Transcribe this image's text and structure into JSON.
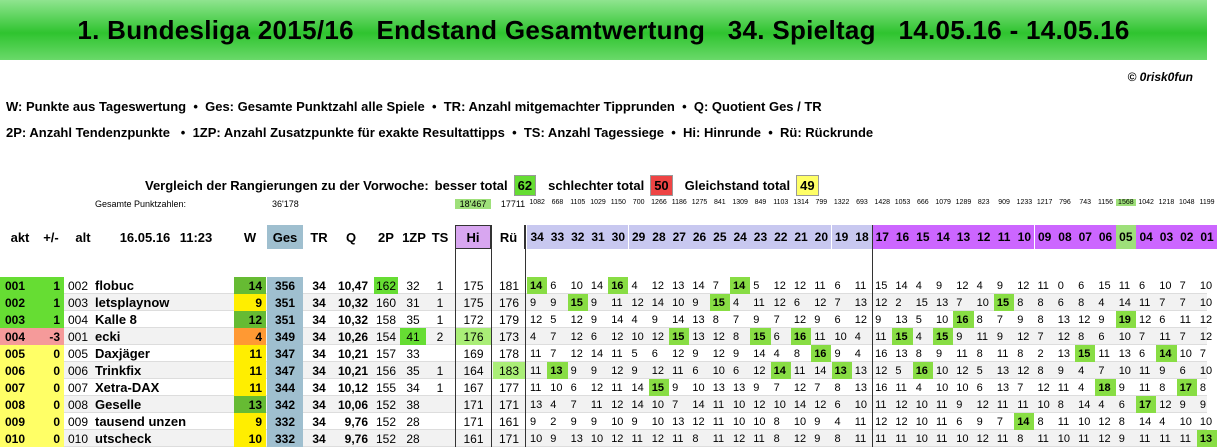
{
  "header": {
    "title": "1. Bundesliga 2015/16   Endstand Gesamtwertung   34. Spieltag   14.05.16 - 14.05.16",
    "copyright": "© 0risk0fun"
  },
  "legend": {
    "line1": "W: Punkte aus Tageswertung  •  Ges: Gesamte Punktzahl alle Spiele  •  TR: Anzahl mitgemachter Tipprunden  •  Q: Quotient Ges / TR",
    "line2": "2P: Anzahl Tendenzpunkte   •  1ZP: Anzahl Zusatzpunkte für exakte Resultattipps  •  TS: Anzahl Tagessiege  •  Hi: Hinrunde  •  Rü: Rückrunde"
  },
  "comparison": {
    "label": "Vergleich der Rangierungen zu der Vorwoche:",
    "better_label": "besser total",
    "better_value": "62",
    "worse_label": "schlechter total",
    "worse_value": "50",
    "equal_label": "Gleichstand total",
    "equal_value": "49"
  },
  "totals": {
    "label": "Gesamte Punktzahlen:",
    "ges_total": "36'178",
    "hi_total": "18'467",
    "rue_total": "17711",
    "round_totals": [
      "1082",
      "668",
      "1105",
      "1029",
      "1150",
      "700",
      "1266",
      "1186",
      "1275",
      "841",
      "1309",
      "849",
      "1103",
      "1314",
      "799",
      "1322",
      "693",
      "1428",
      "1053",
      "666",
      "1079",
      "1289",
      "823",
      "909",
      "1233",
      "1217",
      "796",
      "743",
      "1156",
      "1568",
      "1042",
      "1218",
      "1048",
      "1199"
    ]
  },
  "columns": {
    "akt": "akt",
    "pm": "+/-",
    "alt": "alt",
    "date": "16.05.16",
    "time": "11:23",
    "w": "W",
    "ges": "Ges",
    "tr": "TR",
    "q": "Q",
    "p2": "2P",
    "zp": "1ZP",
    "ts": "TS",
    "hi": "Hi",
    "rue": "Rü",
    "rounds": [
      "34",
      "33",
      "32",
      "31",
      "30",
      "29",
      "28",
      "27",
      "26",
      "25",
      "24",
      "23",
      "22",
      "21",
      "20",
      "19",
      "18",
      "17",
      "16",
      "15",
      "14",
      "13",
      "12",
      "11",
      "10",
      "09",
      "08",
      "07",
      "06",
      "05",
      "04",
      "03",
      "02",
      "01"
    ]
  },
  "colors": {
    "title_green": "#2fc42f",
    "ges_col": "#9fbfcf",
    "hi_col": "#d8a6f0",
    "second_half": "#cc66ff",
    "first_half_header": "#c8c8f0",
    "better": "#66dd33",
    "worse": "#ee4444",
    "equal": "#ffff66"
  },
  "rows": [
    {
      "akt": "001",
      "pm": "1",
      "alt": "002",
      "name": "flobuc",
      "w": "14",
      "ges": "356",
      "tr": "34",
      "q": "10,47",
      "p2": "162",
      "zp": "32",
      "ts": "1",
      "hi": "175",
      "rue": "181",
      "rounds": [
        "14",
        "6",
        "10",
        "14",
        "16",
        "4",
        "12",
        "13",
        "14",
        "7",
        "14",
        "5",
        "12",
        "12",
        "11",
        "6",
        "11",
        "15",
        "14",
        "4",
        "9",
        "12",
        "4",
        "9",
        "12",
        "11",
        "0",
        "6",
        "15",
        "11",
        "6",
        "10",
        "7",
        "10"
      ]
    },
    {
      "akt": "002",
      "pm": "1",
      "alt": "003",
      "name": "letsplaynow",
      "w": "9",
      "ges": "351",
      "tr": "34",
      "q": "10,32",
      "p2": "160",
      "zp": "31",
      "ts": "1",
      "hi": "175",
      "rue": "176",
      "rounds": [
        "9",
        "9",
        "15",
        "9",
        "11",
        "12",
        "14",
        "10",
        "9",
        "15",
        "4",
        "11",
        "12",
        "6",
        "12",
        "7",
        "13",
        "12",
        "2",
        "15",
        "13",
        "7",
        "10",
        "15",
        "8",
        "8",
        "6",
        "8",
        "4",
        "14",
        "11",
        "7",
        "7",
        "10"
      ]
    },
    {
      "akt": "003",
      "pm": "1",
      "alt": "004",
      "name": "Kalle 8",
      "w": "12",
      "ges": "351",
      "tr": "34",
      "q": "10,32",
      "p2": "158",
      "zp": "35",
      "ts": "1",
      "hi": "172",
      "rue": "179",
      "rounds": [
        "12",
        "5",
        "12",
        "9",
        "14",
        "4",
        "9",
        "14",
        "13",
        "8",
        "7",
        "9",
        "7",
        "12",
        "9",
        "6",
        "12",
        "9",
        "13",
        "5",
        "10",
        "16",
        "8",
        "7",
        "9",
        "8",
        "13",
        "12",
        "9",
        "19",
        "12",
        "6",
        "11",
        "12"
      ]
    },
    {
      "akt": "004",
      "pm": "-3",
      "alt": "001",
      "name": "ecki",
      "w": "4",
      "ges": "349",
      "tr": "34",
      "q": "10,26",
      "p2": "154",
      "zp": "41",
      "ts": "2",
      "hi": "176",
      "rue": "173",
      "rounds": [
        "4",
        "7",
        "12",
        "6",
        "12",
        "10",
        "12",
        "15",
        "13",
        "12",
        "8",
        "15",
        "6",
        "16",
        "11",
        "10",
        "4",
        "11",
        "15",
        "4",
        "15",
        "9",
        "11",
        "9",
        "12",
        "7",
        "12",
        "8",
        "6",
        "10",
        "7",
        "11",
        "7",
        "12"
      ]
    },
    {
      "akt": "005",
      "pm": "0",
      "alt": "005",
      "name": "Daxjäger",
      "w": "11",
      "ges": "347",
      "tr": "34",
      "q": "10,21",
      "p2": "157",
      "zp": "33",
      "ts": "",
      "hi": "169",
      "rue": "178",
      "rounds": [
        "11",
        "7",
        "12",
        "14",
        "11",
        "5",
        "6",
        "12",
        "9",
        "12",
        "9",
        "14",
        "4",
        "8",
        "16",
        "9",
        "4",
        "16",
        "13",
        "8",
        "9",
        "11",
        "8",
        "11",
        "8",
        "2",
        "13",
        "15",
        "11",
        "13",
        "6",
        "14",
        "10",
        "7"
      ]
    },
    {
      "akt": "006",
      "pm": "0",
      "alt": "006",
      "name": "Trinkfix",
      "w": "11",
      "ges": "347",
      "tr": "34",
      "q": "10,21",
      "p2": "156",
      "zp": "35",
      "ts": "1",
      "hi": "164",
      "rue": "183",
      "rounds": [
        "11",
        "13",
        "9",
        "9",
        "12",
        "9",
        "12",
        "11",
        "6",
        "10",
        "6",
        "12",
        "14",
        "11",
        "14",
        "13",
        "13",
        "12",
        "5",
        "16",
        "10",
        "12",
        "5",
        "13",
        "12",
        "8",
        "9",
        "4",
        "7",
        "10",
        "11",
        "9",
        "6",
        "10"
      ]
    },
    {
      "akt": "007",
      "pm": "0",
      "alt": "007",
      "name": "Xetra-DAX",
      "w": "11",
      "ges": "344",
      "tr": "34",
      "q": "10,12",
      "p2": "155",
      "zp": "34",
      "ts": "1",
      "hi": "167",
      "rue": "177",
      "rounds": [
        "11",
        "10",
        "6",
        "12",
        "11",
        "14",
        "15",
        "9",
        "10",
        "13",
        "13",
        "9",
        "7",
        "12",
        "7",
        "8",
        "13",
        "16",
        "11",
        "4",
        "10",
        "10",
        "6",
        "13",
        "7",
        "12",
        "11",
        "4",
        "18",
        "9",
        "11",
        "8",
        "17",
        "8"
      ]
    },
    {
      "akt": "008",
      "pm": "0",
      "alt": "008",
      "name": "Geselle",
      "w": "13",
      "ges": "342",
      "tr": "34",
      "q": "10,06",
      "p2": "152",
      "zp": "38",
      "ts": "",
      "hi": "171",
      "rue": "171",
      "rounds": [
        "13",
        "4",
        "7",
        "11",
        "12",
        "14",
        "10",
        "7",
        "14",
        "11",
        "10",
        "12",
        "10",
        "14",
        "12",
        "6",
        "10",
        "11",
        "12",
        "10",
        "11",
        "9",
        "12",
        "11",
        "11",
        "10",
        "8",
        "14",
        "4",
        "6",
        "17",
        "12",
        "9",
        "9"
      ]
    },
    {
      "akt": "009",
      "pm": "0",
      "alt": "009",
      "name": "tausend unzen",
      "w": "9",
      "ges": "332",
      "tr": "34",
      "q": "9,76",
      "p2": "152",
      "zp": "28",
      "ts": "",
      "hi": "171",
      "rue": "161",
      "rounds": [
        "9",
        "2",
        "9",
        "9",
        "10",
        "9",
        "10",
        "13",
        "12",
        "11",
        "10",
        "10",
        "8",
        "10",
        "9",
        "4",
        "11",
        "12",
        "12",
        "10",
        "11",
        "6",
        "9",
        "7",
        "14",
        "8",
        "11",
        "10",
        "12",
        "8",
        "14",
        "4",
        "10",
        "10"
      ]
    },
    {
      "akt": "010",
      "pm": "0",
      "alt": "010",
      "name": "utscheck",
      "w": "10",
      "ges": "332",
      "tr": "34",
      "q": "9,76",
      "p2": "152",
      "zp": "28",
      "ts": "",
      "hi": "161",
      "rue": "171",
      "rounds": [
        "10",
        "9",
        "13",
        "10",
        "12",
        "11",
        "12",
        "11",
        "8",
        "11",
        "12",
        "11",
        "8",
        "12",
        "9",
        "8",
        "11",
        "11",
        "11",
        "10",
        "11",
        "10",
        "12",
        "11",
        "8",
        "11",
        "10",
        "11",
        "12",
        "9",
        "11",
        "11",
        "11",
        "13"
      ]
    }
  ]
}
